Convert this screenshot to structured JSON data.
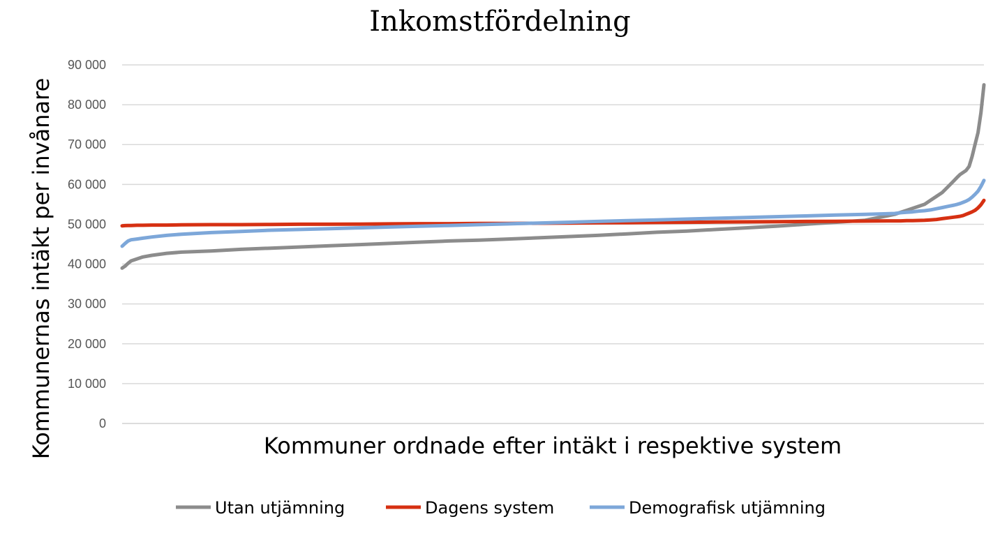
{
  "chart_data": {
    "type": "line",
    "title": "Inkomstfördelning",
    "xlabel": "Kommuner ordnade efter intäkt i respektive system",
    "ylabel": "Kommunernas intäkt per invånare",
    "ylim": [
      0,
      90000
    ],
    "yticks": [
      {
        "value": 0,
        "label": "0"
      },
      {
        "value": 10000,
        "label": "10 000"
      },
      {
        "value": 20000,
        "label": "20 000"
      },
      {
        "value": 30000,
        "label": "30 000"
      },
      {
        "value": 40000,
        "label": "40 000"
      },
      {
        "value": 50000,
        "label": "50 000"
      },
      {
        "value": 60000,
        "label": "60 000"
      },
      {
        "value": 70000,
        "label": "70 000"
      },
      {
        "value": 80000,
        "label": "80 000"
      },
      {
        "value": 90000,
        "label": "90 000"
      }
    ],
    "grid": true,
    "legend": "bottom",
    "x": [
      0,
      1,
      2,
      3,
      5,
      7,
      10,
      15,
      20,
      30,
      40,
      50,
      60,
      70,
      80,
      90,
      100,
      110,
      120,
      130,
      140,
      150,
      160,
      170,
      180,
      190,
      200,
      210,
      220,
      230,
      240,
      250,
      260,
      262,
      264,
      266,
      268,
      270,
      272,
      274,
      276,
      278,
      280,
      281,
      282,
      283,
      284,
      285,
      286,
      287,
      288,
      289,
      290
    ],
    "series": [
      {
        "name": "Utan utjämning",
        "color": "#8c8c8c",
        "values": [
          39000,
          39500,
          40200,
          40800,
          41300,
          41800,
          42200,
          42700,
          43000,
          43300,
          43700,
          44000,
          44300,
          44600,
          44900,
          45200,
          45500,
          45800,
          46000,
          46300,
          46600,
          46900,
          47200,
          47600,
          48000,
          48300,
          48700,
          49100,
          49500,
          50000,
          50500,
          51000,
          52500,
          53000,
          53500,
          54000,
          54500,
          55000,
          56000,
          57000,
          58000,
          59500,
          61000,
          61800,
          62500,
          63000,
          63500,
          64500,
          67000,
          70000,
          73000,
          78000,
          85000
        ]
      },
      {
        "name": "Dagens system",
        "color": "#d63012",
        "values": [
          49600,
          49650,
          49700,
          49700,
          49750,
          49750,
          49800,
          49800,
          49850,
          49900,
          49900,
          49950,
          50000,
          50000,
          50050,
          50100,
          50150,
          50150,
          50200,
          50200,
          50250,
          50300,
          50350,
          50400,
          50450,
          50500,
          50550,
          50600,
          50650,
          50700,
          50750,
          50800,
          50850,
          50850,
          50900,
          50900,
          50950,
          51000,
          51100,
          51200,
          51400,
          51600,
          51800,
          51900,
          52000,
          52200,
          52500,
          52800,
          53100,
          53500,
          54100,
          54900,
          56000
        ]
      },
      {
        "name": "Demografisk utjämning",
        "color": "#7da7d9",
        "values": [
          44500,
          45200,
          45800,
          46100,
          46300,
          46500,
          46800,
          47200,
          47500,
          47900,
          48200,
          48500,
          48700,
          48900,
          49100,
          49300,
          49500,
          49700,
          49900,
          50100,
          50300,
          50500,
          50700,
          50900,
          51100,
          51300,
          51500,
          51700,
          51900,
          52100,
          52300,
          52500,
          52700,
          52900,
          53000,
          53100,
          53300,
          53400,
          53600,
          53900,
          54200,
          54500,
          54800,
          55000,
          55200,
          55500,
          55800,
          56200,
          56800,
          57500,
          58300,
          59500,
          61000
        ]
      }
    ]
  }
}
